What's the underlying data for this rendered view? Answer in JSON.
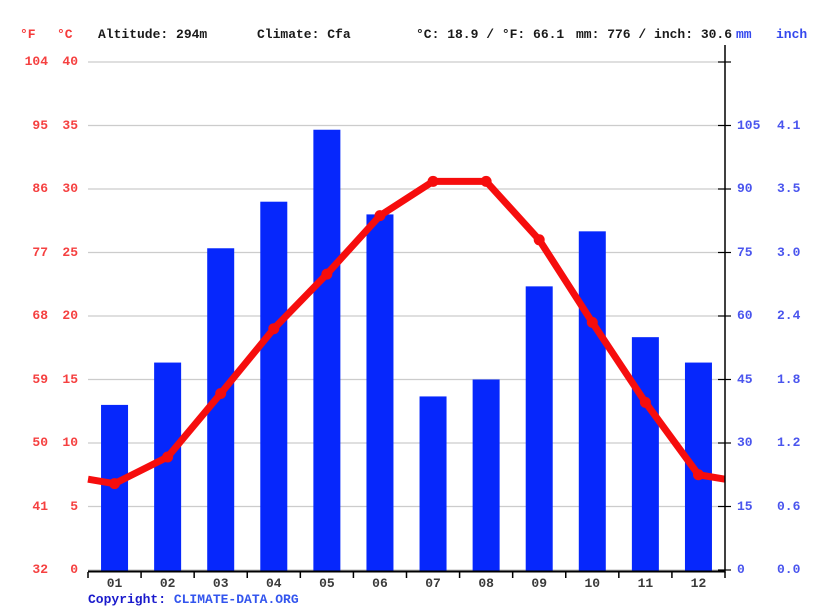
{
  "header": {
    "f_label": "°F",
    "c_label": "°C",
    "altitude": "Altitude: 294m",
    "climate": "Climate: Cfa",
    "temp_summary": "°C: 18.9 / °F: 66.1",
    "precip_summary": "mm: 776 / inch: 30.6",
    "mm_label": "mm",
    "inch_label": "inch"
  },
  "axes": {
    "left_f": [
      "104",
      "95",
      "86",
      "77",
      "68",
      "59",
      "50",
      "41",
      "32"
    ],
    "left_c": [
      "40",
      "35",
      "30",
      "25",
      "20",
      "15",
      "10",
      "5",
      "0"
    ],
    "right_mm": [
      "105",
      "90",
      "75",
      "60",
      "45",
      "30",
      "15",
      "0"
    ],
    "right_inch": [
      "4.1",
      "3.5",
      "3.0",
      "2.4",
      "1.8",
      "1.2",
      "0.6",
      "0.0"
    ]
  },
  "chart_data": {
    "type": "bar",
    "subtype": "climate-graph (bar + line overlay)",
    "categories": [
      "01",
      "02",
      "03",
      "04",
      "05",
      "06",
      "07",
      "08",
      "09",
      "10",
      "11",
      "12"
    ],
    "series": [
      {
        "name": "precipitation",
        "type": "bar",
        "unit": "mm",
        "color": "#0627fc",
        "values": [
          39,
          49,
          76,
          87,
          104,
          84,
          41,
          45,
          67,
          80,
          55,
          49
        ]
      },
      {
        "name": "temperature",
        "type": "line",
        "unit": "°C",
        "color": "#f60d0d",
        "values": [
          6.8,
          8.9,
          13.9,
          19.0,
          23.3,
          27.9,
          30.6,
          30.6,
          26.0,
          19.5,
          13.2,
          7.5
        ]
      }
    ],
    "title": "",
    "xlabel": "month",
    "y_left": {
      "label": "°C",
      "min": 0,
      "max": 40,
      "step": 5
    },
    "y_left_secondary": {
      "label": "°F",
      "ticks": [
        104,
        95,
        86,
        77,
        68,
        59,
        50,
        41,
        32
      ]
    },
    "y_right": {
      "label": "mm",
      "min": 0,
      "max": 120,
      "step": 15
    },
    "y_right_secondary": {
      "label": "inch",
      "ticks": [
        4.1,
        3.5,
        3.0,
        2.4,
        1.8,
        1.2,
        0.6,
        0.0
      ]
    },
    "grid": true,
    "legend": "none",
    "annual_mean_temp_c": 18.9,
    "annual_mean_temp_f": 66.1,
    "annual_precip_mm": 776,
    "annual_precip_inch": 30.6
  },
  "footer": {
    "copyright_prefix": "Copyright: ",
    "copyright_link": "CLIMATE-DATA.ORG"
  },
  "colors": {
    "bar": "#0627fc",
    "line": "#f60d0d",
    "left_axis_text": "#f54040",
    "right_axis_text": "#4a55ee",
    "grid": "#cccccc",
    "axis": "#000000"
  }
}
